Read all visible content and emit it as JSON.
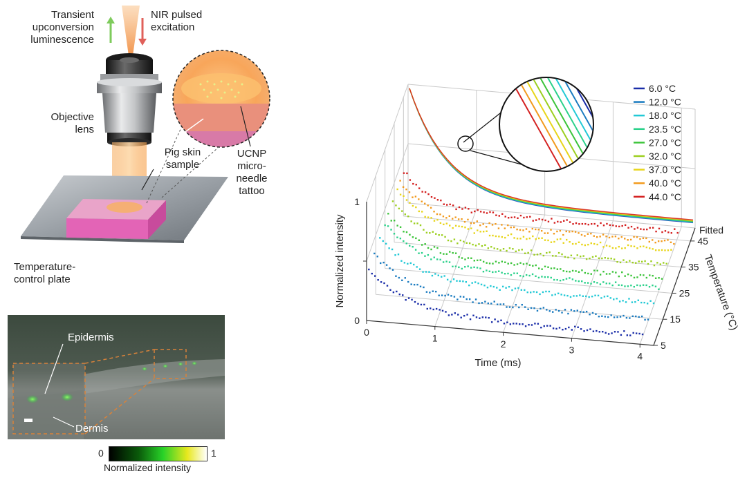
{
  "setup": {
    "transient_label": [
      "Transient",
      "upconversion",
      "luminescence"
    ],
    "nir_label": [
      "NIR pulsed",
      "excitation"
    ],
    "objective_label": [
      "Objective",
      "lens"
    ],
    "pig_label": [
      "Pig skin",
      "sample"
    ],
    "ucnp_label": [
      "UCNP",
      "micro-",
      "needle",
      "tattoo"
    ],
    "plate_label": [
      "Temperature-",
      "control plate"
    ],
    "colors": {
      "emission_arrow": "#7ecb5c",
      "excitation_arrow": "#e0605a",
      "beam": "#f7a64e",
      "skin": "#e85fb8",
      "plate": "#9aa0a6"
    }
  },
  "micrograph": {
    "epidermis": "Epidermis",
    "dermis": "Dermis",
    "colorbar_min": "0",
    "colorbar_max": "1",
    "colorbar_label": "Normalized intensity"
  },
  "chart_data": {
    "type": "scatter",
    "xlabel": "Time (ms)",
    "ylabel": "Normalized intensity",
    "zlabel": "Temperature (°C)",
    "x_ticks": [
      "0",
      "1",
      "2",
      "3",
      "4"
    ],
    "y_ticks": [
      "0",
      "1"
    ],
    "z_ticks": [
      "5",
      "15",
      "25",
      "35",
      "45"
    ],
    "xlim": [
      0,
      4.2
    ],
    "ylim": [
      0,
      1
    ],
    "zlim": [
      5,
      50
    ],
    "fitted_label": "Fitted",
    "legend_position": "top-right",
    "series": [
      {
        "name": "6.0 °C",
        "temperature": 6.0,
        "color": "#1a2da8",
        "tau_ms": 0.55,
        "baseline": 0.14
      },
      {
        "name": "12.0 °C",
        "temperature": 12.0,
        "color": "#1a7bc0",
        "tau_ms": 0.53,
        "baseline": 0.15
      },
      {
        "name": "18.0 °C",
        "temperature": 18.0,
        "color": "#22c9d6",
        "tau_ms": 0.51,
        "baseline": 0.16
      },
      {
        "name": "23.5 °C",
        "temperature": 23.5,
        "color": "#2ad18a",
        "tau_ms": 0.49,
        "baseline": 0.17
      },
      {
        "name": "27.0 °C",
        "temperature": 27.0,
        "color": "#3cc43a",
        "tau_ms": 0.47,
        "baseline": 0.18
      },
      {
        "name": "32.0 °C",
        "temperature": 32.0,
        "color": "#9ccf1f",
        "tau_ms": 0.45,
        "baseline": 0.19
      },
      {
        "name": "37.0 °C",
        "temperature": 37.0,
        "color": "#e8d51a",
        "tau_ms": 0.43,
        "baseline": 0.2
      },
      {
        "name": "40.0 °C",
        "temperature": 40.0,
        "color": "#f29a1d",
        "tau_ms": 0.41,
        "baseline": 0.21
      },
      {
        "name": "44.0 °C",
        "temperature": 44.0,
        "color": "#d42020",
        "tau_ms": 0.39,
        "baseline": 0.22
      }
    ],
    "fit_color": "#4a9bbf"
  }
}
